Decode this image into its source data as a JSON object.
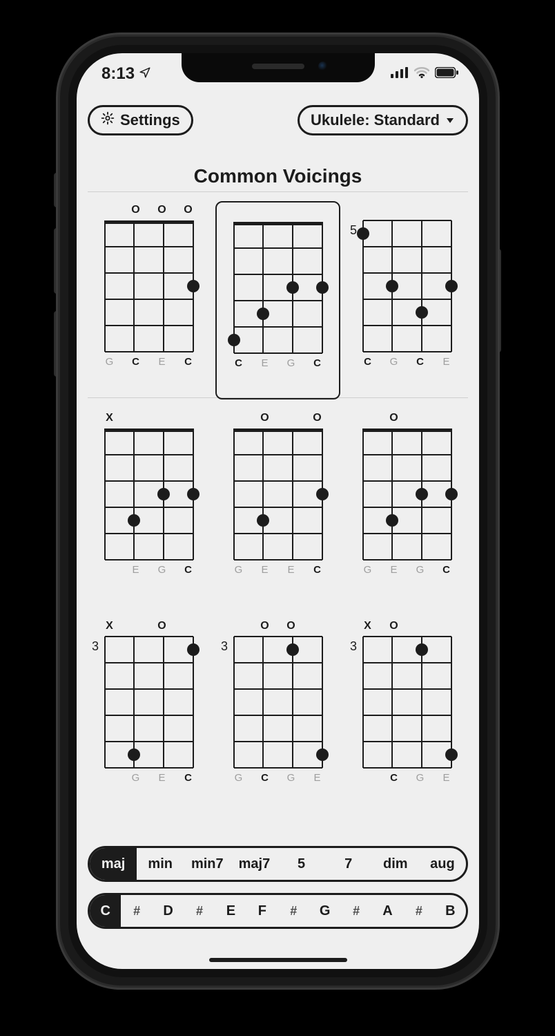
{
  "colors": {
    "page_bg": "#000000",
    "screen_bg": "#efefef",
    "ink": "#1c1c1c",
    "muted": "#9e9e9e",
    "divider": "#cfcfcf"
  },
  "phone": {
    "model": "iPhone",
    "side_buttons": 4
  },
  "status": {
    "time": "8:13",
    "location_arrow": true,
    "signal_bars": 4,
    "wifi": true,
    "battery": "full"
  },
  "header": {
    "settings_label": "Settings",
    "instrument_label": "Ukulele: Standard"
  },
  "title": "Common Voicings",
  "chord_grid": {
    "instrument": "ukulele",
    "strings": 4,
    "frets_shown": 5,
    "fret_line_width": 2,
    "string_line_width": 2,
    "dot_diameter": 18,
    "board_width": 128,
    "board_height": 190,
    "open_glyph": "O",
    "mute_glyph": "X",
    "root_note": "C",
    "voicings": [
      {
        "id": 0,
        "selected": false,
        "start_fret": null,
        "show_nut": true,
        "indicators": [
          "",
          "O",
          "O",
          "O"
        ],
        "dots": [
          {
            "string": 4,
            "fret": 3
          }
        ],
        "notes": [
          "G",
          "C",
          "E",
          "C"
        ],
        "roots": [
          false,
          true,
          false,
          true
        ]
      },
      {
        "id": 1,
        "selected": true,
        "start_fret": null,
        "show_nut": true,
        "indicators": [
          "",
          "",
          "",
          ""
        ],
        "dots": [
          {
            "string": 1,
            "fret": 5
          },
          {
            "string": 2,
            "fret": 4
          },
          {
            "string": 3,
            "fret": 3
          },
          {
            "string": 4,
            "fret": 3
          }
        ],
        "notes": [
          "C",
          "E",
          "G",
          "C"
        ],
        "roots": [
          true,
          false,
          false,
          true
        ]
      },
      {
        "id": 2,
        "selected": false,
        "start_fret": "5",
        "show_nut": false,
        "indicators": [
          "",
          "",
          "",
          ""
        ],
        "dots": [
          {
            "string": 1,
            "fret": 1
          },
          {
            "string": 2,
            "fret": 3
          },
          {
            "string": 3,
            "fret": 4
          },
          {
            "string": 4,
            "fret": 3
          }
        ],
        "notes": [
          "C",
          "G",
          "C",
          "E"
        ],
        "roots": [
          true,
          false,
          true,
          false
        ]
      },
      {
        "id": 3,
        "selected": false,
        "start_fret": null,
        "show_nut": true,
        "indicators": [
          "X",
          "",
          "",
          ""
        ],
        "dots": [
          {
            "string": 2,
            "fret": 4
          },
          {
            "string": 3,
            "fret": 3
          },
          {
            "string": 4,
            "fret": 3
          }
        ],
        "notes": [
          "",
          "E",
          "G",
          "C"
        ],
        "roots": [
          false,
          false,
          false,
          true
        ]
      },
      {
        "id": 4,
        "selected": false,
        "start_fret": null,
        "show_nut": true,
        "indicators": [
          "",
          "O",
          "",
          "O"
        ],
        "dots": [
          {
            "string": 2,
            "fret": 4
          },
          {
            "string": 4,
            "fret": 3
          },
          {
            "string": 1,
            "fret": 0,
            "hidden": true
          }
        ],
        "notes": [
          "G",
          "E",
          "E",
          "C"
        ],
        "roots": [
          false,
          false,
          false,
          true
        ]
      },
      {
        "id": 5,
        "selected": false,
        "start_fret": null,
        "show_nut": true,
        "indicators": [
          "",
          "O",
          "",
          ""
        ],
        "dots": [
          {
            "string": 2,
            "fret": 4
          },
          {
            "string": 3,
            "fret": 3
          },
          {
            "string": 4,
            "fret": 3
          },
          {
            "string": 1,
            "fret": 0,
            "hidden": true
          }
        ],
        "notes": [
          "G",
          "E",
          "G",
          "C"
        ],
        "roots": [
          false,
          false,
          false,
          true
        ]
      },
      {
        "id": 6,
        "selected": false,
        "start_fret": "3",
        "show_nut": false,
        "indicators": [
          "X",
          "",
          "O",
          ""
        ],
        "dots": [
          {
            "string": 2,
            "fret": 5
          },
          {
            "string": 4,
            "fret": 1
          }
        ],
        "notes": [
          "",
          "G",
          "E",
          "C"
        ],
        "roots": [
          false,
          false,
          false,
          true
        ]
      },
      {
        "id": 7,
        "selected": false,
        "start_fret": "3",
        "show_nut": false,
        "indicators": [
          "",
          "O",
          "O",
          ""
        ],
        "dots": [
          {
            "string": 3,
            "fret": 1
          },
          {
            "string": 4,
            "fret": 5
          }
        ],
        "notes": [
          "G",
          "C",
          "G",
          "E"
        ],
        "roots": [
          false,
          true,
          false,
          false
        ]
      },
      {
        "id": 8,
        "selected": false,
        "start_fret": "3",
        "show_nut": false,
        "indicators": [
          "X",
          "O",
          "",
          ""
        ],
        "dots": [
          {
            "string": 3,
            "fret": 1
          },
          {
            "string": 4,
            "fret": 5
          }
        ],
        "notes": [
          "",
          "C",
          "G",
          "E"
        ],
        "roots": [
          false,
          true,
          false,
          false
        ]
      }
    ]
  },
  "quality_selector": {
    "items": [
      "maj",
      "min",
      "min7",
      "maj7",
      "5",
      "7",
      "dim",
      "aug"
    ],
    "active_index": 0
  },
  "root_selector": {
    "items": [
      "C",
      "#",
      "D",
      "#",
      "E",
      "F",
      "#",
      "G",
      "#",
      "A",
      "#",
      "B"
    ],
    "sharp_indices": [
      1,
      3,
      6,
      8,
      10
    ],
    "active_index": 0
  }
}
